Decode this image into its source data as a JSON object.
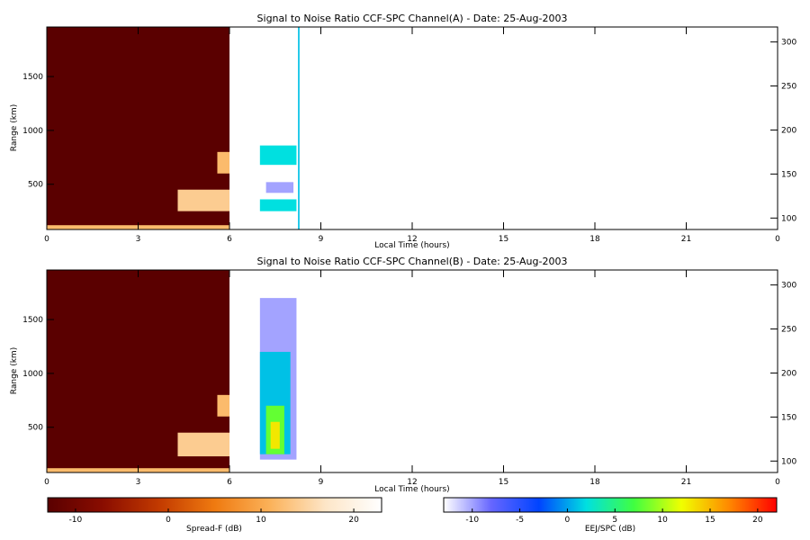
{
  "chart_data": [
    {
      "type": "heatmap",
      "title": "Signal to Noise Ratio CCF-SPC Channel(A) - Date: 25-Aug-2003",
      "xlabel": "Local Time (hours)",
      "ylabel": "Range (km)",
      "xlim": [
        0,
        24
      ],
      "ylim": [
        80,
        1960
      ],
      "xticks": [
        "0",
        "3",
        "6",
        "9",
        "12",
        "15",
        "18",
        "21",
        "0"
      ],
      "yticks": [
        500,
        1000,
        1500
      ],
      "y2lim": [
        87,
        317
      ],
      "y2ticks": [
        100,
        150,
        200,
        250,
        300
      ],
      "regions": [
        {
          "colormap": "spreadf",
          "x0": 0,
          "x1": 6,
          "y0": 80,
          "y1": 1960,
          "value": -14
        },
        {
          "colormap": "spreadf",
          "x0": 0,
          "x1": 6,
          "y0": 80,
          "y1": 120,
          "value": 12
        },
        {
          "colormap": "spreadf",
          "x0": 4.3,
          "x1": 6,
          "y0": 250,
          "y1": 450,
          "value": 14
        },
        {
          "colormap": "spreadf",
          "x0": 5.6,
          "x1": 6,
          "y0": 600,
          "y1": 800,
          "value": 12
        },
        {
          "colormap": "eej",
          "x0": 7.0,
          "x1": 8.2,
          "y0": 680,
          "y1": 860,
          "value": 2
        },
        {
          "colormap": "eej",
          "x0": 7.0,
          "x1": 8.2,
          "y0": 250,
          "y1": 360,
          "value": 2
        },
        {
          "colormap": "eej",
          "x0": 7.2,
          "x1": 8.1,
          "y0": 420,
          "y1": 520,
          "value": -10
        },
        {
          "colormap": "eej",
          "x0": 8.25,
          "x1": 8.3,
          "y0": 80,
          "y1": 1960,
          "value": 1
        }
      ]
    },
    {
      "type": "heatmap",
      "title": "Signal to Noise Ratio CCF-SPC Channel(B) - Date: 25-Aug-2003",
      "xlabel": "Local Time (hours)",
      "ylabel": "Range (km)",
      "xlim": [
        0,
        24
      ],
      "ylim": [
        80,
        1960
      ],
      "xticks": [
        "0",
        "3",
        "6",
        "9",
        "12",
        "15",
        "18",
        "21",
        "0"
      ],
      "yticks": [
        500,
        1000,
        1500
      ],
      "y2lim": [
        87,
        317
      ],
      "y2ticks": [
        100,
        150,
        200,
        250,
        300
      ],
      "regions": [
        {
          "colormap": "spreadf",
          "x0": 0,
          "x1": 6,
          "y0": 80,
          "y1": 1960,
          "value": -14
        },
        {
          "colormap": "spreadf",
          "x0": 0,
          "x1": 6,
          "y0": 80,
          "y1": 120,
          "value": 12
        },
        {
          "colormap": "spreadf",
          "x0": 4.3,
          "x1": 6,
          "y0": 230,
          "y1": 450,
          "value": 14
        },
        {
          "colormap": "spreadf",
          "x0": 5.6,
          "x1": 6,
          "y0": 600,
          "y1": 800,
          "value": 12
        },
        {
          "colormap": "eej",
          "x0": 7.0,
          "x1": 8.2,
          "y0": 200,
          "y1": 1700,
          "value": -10
        },
        {
          "colormap": "eej",
          "x0": 7.0,
          "x1": 8.0,
          "y0": 250,
          "y1": 1200,
          "value": 1
        },
        {
          "colormap": "eej",
          "x0": 7.2,
          "x1": 7.8,
          "y0": 250,
          "y1": 700,
          "value": 8
        },
        {
          "colormap": "eej",
          "x0": 7.35,
          "x1": 7.65,
          "y0": 300,
          "y1": 550,
          "value": 13
        }
      ]
    }
  ],
  "colorbars": [
    {
      "name": "spreadf",
      "label": "Spread-F (dB)",
      "range": [
        -13,
        23
      ],
      "ticks": [
        -10,
        0,
        10,
        20
      ],
      "colors": [
        "#5a0000",
        "#8a0d00",
        "#c23a00",
        "#ef7a10",
        "#fbb25a",
        "#fde6c8",
        "#ffffff"
      ]
    },
    {
      "name": "eej",
      "label": "EEJ/SPC (dB)",
      "range": [
        -13,
        22
      ],
      "ticks": [
        -10,
        -5,
        0,
        5,
        10,
        15,
        20
      ],
      "colors": [
        "#ffffff",
        "#6666ff",
        "#0044ff",
        "#00e0e0",
        "#40ff40",
        "#f0ff00",
        "#ff8800",
        "#ff0000"
      ]
    }
  ]
}
